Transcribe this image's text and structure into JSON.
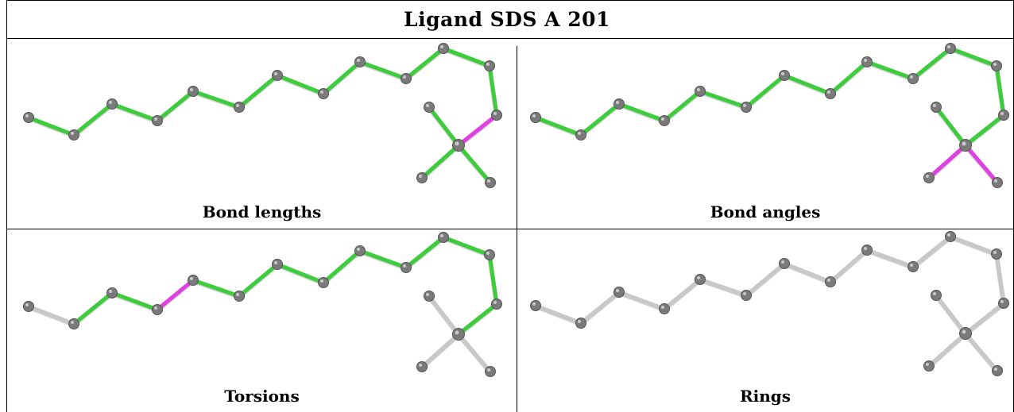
{
  "title": "Ligand SDS A 201",
  "colors": {
    "ok": "#3ccc3c",
    "outlier": "#e040e0",
    "neutral": "#c8c8c8",
    "atom": "#7a7a7a"
  },
  "panels": [
    {
      "caption": "Bond lengths",
      "bonds": [
        "ok",
        "ok",
        "ok",
        "ok",
        "ok",
        "ok",
        "ok",
        "ok",
        "ok",
        "ok",
        "ok",
        "ok",
        "outlier",
        "ok",
        "ok",
        "ok"
      ]
    },
    {
      "caption": "Bond angles",
      "bonds": [
        "ok",
        "ok",
        "ok",
        "ok",
        "ok",
        "ok",
        "ok",
        "ok",
        "ok",
        "ok",
        "ok",
        "ok",
        "ok",
        "ok",
        "outlier",
        "outlier"
      ]
    },
    {
      "caption": "Torsions",
      "bonds": [
        "neutral",
        "ok",
        "ok",
        "outlier",
        "ok",
        "ok",
        "ok",
        "ok",
        "ok",
        "ok",
        "ok",
        "ok",
        "ok",
        "neutral",
        "neutral",
        "neutral"
      ]
    },
    {
      "caption": "Rings",
      "bonds": [
        "neutral",
        "neutral",
        "neutral",
        "neutral",
        "neutral",
        "neutral",
        "neutral",
        "neutral",
        "neutral",
        "neutral",
        "neutral",
        "neutral",
        "neutral",
        "neutral",
        "neutral",
        "neutral"
      ]
    }
  ]
}
